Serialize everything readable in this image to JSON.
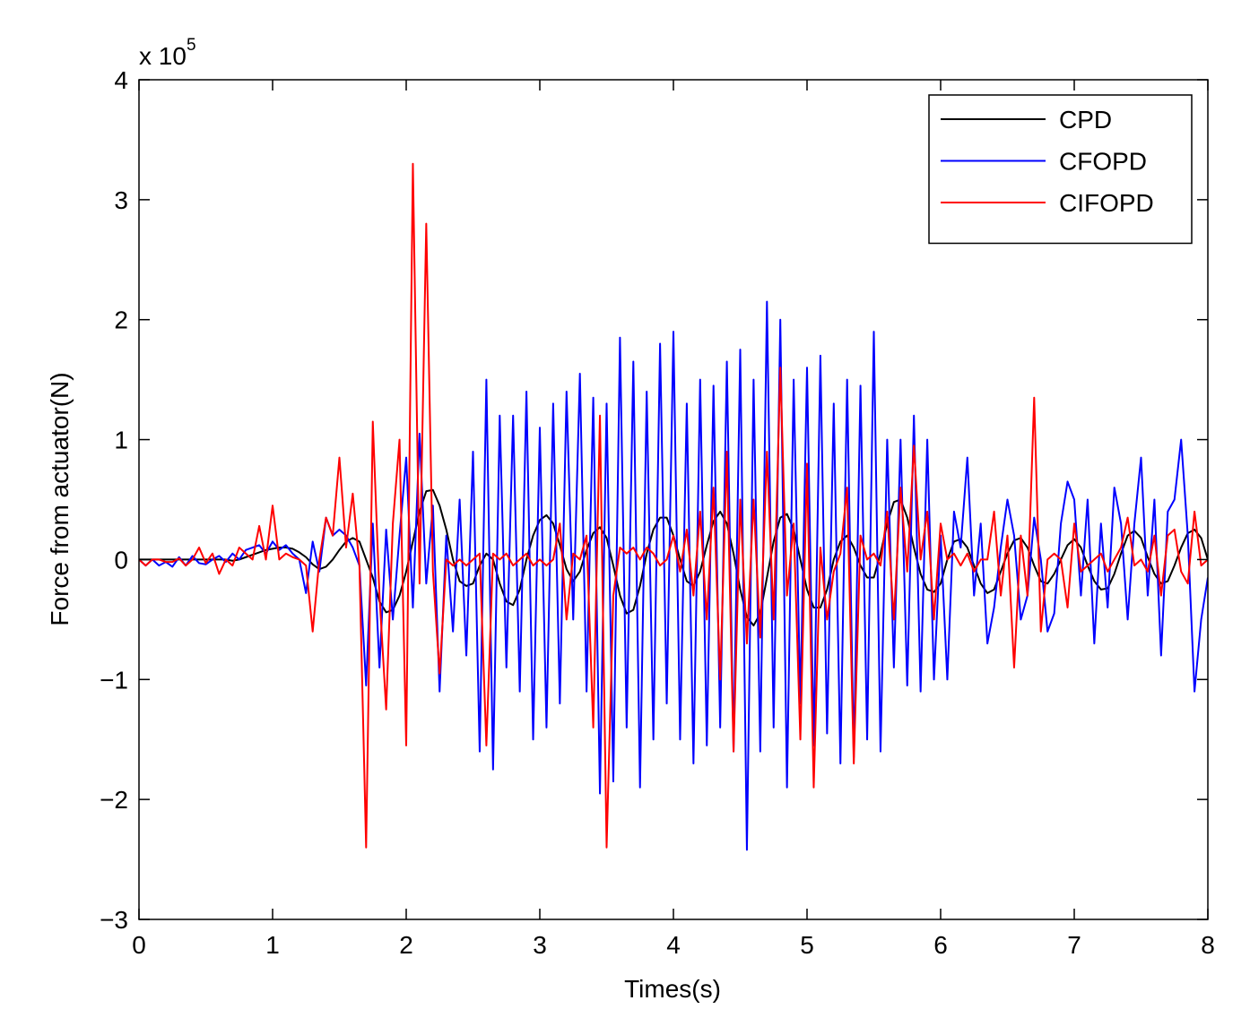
{
  "chart_data": {
    "type": "line",
    "xlabel": "Times(s)",
    "ylabel": "Force from actuator(N)",
    "y_multiplier": {
      "base": "x 10",
      "exponent": "5"
    },
    "xlim": [
      0,
      8
    ],
    "xticks": [
      0,
      1,
      2,
      3,
      4,
      5,
      6,
      7,
      8
    ],
    "ylim": [
      -3,
      4
    ],
    "yticks": [
      {
        "value": -3,
        "label": "−3"
      },
      {
        "value": -2,
        "label": "−2"
      },
      {
        "value": -1,
        "label": "−1"
      },
      0,
      1,
      2,
      3,
      4
    ],
    "grid": false,
    "legend": "upper right",
    "x": [
      0,
      0.05,
      0.1,
      0.15,
      0.2,
      0.25,
      0.3,
      0.35,
      0.4,
      0.45,
      0.5,
      0.55,
      0.6,
      0.65,
      0.7,
      0.75,
      0.8,
      0.85,
      0.9,
      0.95,
      1,
      1.05,
      1.1,
      1.15,
      1.2,
      1.25,
      1.3,
      1.35,
      1.4,
      1.45,
      1.5,
      1.55,
      1.6,
      1.65,
      1.7,
      1.75,
      1.8,
      1.85,
      1.9,
      1.95,
      2,
      2.05,
      2.1,
      2.15,
      2.2,
      2.25,
      2.3,
      2.35,
      2.4,
      2.45,
      2.5,
      2.55,
      2.6,
      2.65,
      2.7,
      2.75,
      2.8,
      2.85,
      2.9,
      2.95,
      3,
      3.05,
      3.1,
      3.15,
      3.2,
      3.25,
      3.3,
      3.35,
      3.4,
      3.45,
      3.5,
      3.55,
      3.6,
      3.65,
      3.7,
      3.75,
      3.8,
      3.85,
      3.9,
      3.95,
      4,
      4.05,
      4.1,
      4.15,
      4.2,
      4.25,
      4.3,
      4.35,
      4.4,
      4.45,
      4.5,
      4.55,
      4.6,
      4.65,
      4.7,
      4.75,
      4.8,
      4.85,
      4.9,
      4.95,
      5,
      5.05,
      5.1,
      5.15,
      5.2,
      5.25,
      5.3,
      5.35,
      5.4,
      5.45,
      5.5,
      5.55,
      5.6,
      5.65,
      5.7,
      5.75,
      5.8,
      5.85,
      5.9,
      5.95,
      6,
      6.05,
      6.1,
      6.15,
      6.2,
      6.25,
      6.3,
      6.35,
      6.4,
      6.45,
      6.5,
      6.55,
      6.6,
      6.65,
      6.7,
      6.75,
      6.8,
      6.85,
      6.9,
      6.95,
      7,
      7.05,
      7.1,
      7.15,
      7.2,
      7.25,
      7.3,
      7.35,
      7.4,
      7.45,
      7.5,
      7.55,
      7.6,
      7.65,
      7.7,
      7.75,
      7.8,
      7.85,
      7.9,
      7.95,
      8
    ],
    "series": [
      {
        "name": "CPD",
        "color": "#000000",
        "values": [
          0,
          0,
          0,
          0,
          0,
          0,
          0,
          0,
          0,
          0,
          0,
          0,
          0,
          0,
          -0.01,
          0,
          0.02,
          0.04,
          0.06,
          0.08,
          0.09,
          0.1,
          0.1,
          0.09,
          0.06,
          0.02,
          -0.04,
          -0.08,
          -0.06,
          0,
          0.08,
          0.15,
          0.18,
          0.15,
          0,
          -0.15,
          -0.35,
          -0.44,
          -0.42,
          -0.3,
          -0.1,
          0.15,
          0.4,
          0.57,
          0.58,
          0.45,
          0.25,
          0,
          -0.18,
          -0.22,
          -0.2,
          -0.05,
          0.05,
          0,
          -0.2,
          -0.35,
          -0.38,
          -0.25,
          0,
          0.2,
          0.33,
          0.37,
          0.3,
          0.12,
          -0.08,
          -0.18,
          -0.1,
          0.08,
          0.22,
          0.27,
          0.18,
          -0.05,
          -0.3,
          -0.45,
          -0.42,
          -0.22,
          0.05,
          0.25,
          0.35,
          0.35,
          0.2,
          0,
          -0.18,
          -0.22,
          -0.1,
          0.12,
          0.32,
          0.4,
          0.3,
          0.05,
          -0.25,
          -0.48,
          -0.55,
          -0.45,
          -0.15,
          0.15,
          0.35,
          0.38,
          0.25,
          0,
          -0.25,
          -0.4,
          -0.4,
          -0.25,
          0,
          0.15,
          0.2,
          0.1,
          -0.05,
          -0.15,
          -0.15,
          0.05,
          0.3,
          0.48,
          0.5,
          0.35,
          0.1,
          -0.12,
          -0.25,
          -0.27,
          -0.2,
          0,
          0.15,
          0.17,
          0.1,
          -0.05,
          -0.2,
          -0.28,
          -0.25,
          -0.1,
          0.05,
          0.16,
          0.18,
          0.1,
          -0.05,
          -0.18,
          -0.2,
          -0.12,
          0,
          0.12,
          0.17,
          0.1,
          -0.05,
          -0.18,
          -0.25,
          -0.24,
          -0.12,
          0.05,
          0.2,
          0.24,
          0.18,
          0.02,
          -0.12,
          -0.2,
          -0.18,
          -0.05,
          0.1,
          0.22,
          0.25,
          0.18,
          0
        ]
      },
      {
        "name": "CFOPD",
        "color": "#0000ff",
        "values": [
          0,
          -0.05,
          0,
          -0.05,
          -0.02,
          -0.06,
          0.02,
          -0.05,
          0.03,
          -0.03,
          -0.04,
          0,
          0.03,
          -0.02,
          0.05,
          0,
          0.08,
          0.1,
          0.12,
          0.05,
          0.15,
          0.08,
          0.12,
          0.05,
          0,
          -0.28,
          0.15,
          -0.1,
          0.35,
          0.2,
          0.25,
          0.2,
          0.1,
          -0.05,
          -1.05,
          0.3,
          -0.9,
          0.25,
          -0.5,
          0.2,
          0.85,
          -0.4,
          1.05,
          -0.2,
          0.45,
          -1.1,
          0.2,
          -0.6,
          0.5,
          -0.8,
          0.9,
          -1.6,
          1.5,
          -1.75,
          1.2,
          -0.9,
          1.2,
          -1.1,
          1.4,
          -1.5,
          1.1,
          -1.4,
          1.3,
          -1.2,
          1.4,
          -0.5,
          1.55,
          -1.1,
          1.35,
          -1.95,
          1.3,
          -1.85,
          1.85,
          -1.4,
          1.65,
          -1.9,
          1.4,
          -1.5,
          1.8,
          -1.2,
          1.9,
          -1.5,
          1.3,
          -1.7,
          1.5,
          -1.55,
          1.45,
          -1.4,
          1.65,
          -1.6,
          1.75,
          -2.42,
          1.5,
          -1.6,
          2.15,
          -1.4,
          2,
          -1.9,
          1.5,
          -1.2,
          1.6,
          -1.55,
          1.7,
          -1.45,
          1.3,
          -1.7,
          1.5,
          -1.65,
          1.45,
          -1.5,
          1.9,
          -1.6,
          1,
          -0.9,
          1,
          -1.05,
          1.2,
          -1.1,
          1,
          -1,
          0.2,
          -1,
          0.4,
          0.1,
          0.85,
          -0.3,
          0.3,
          -0.7,
          -0.4,
          0.1,
          0.5,
          0.2,
          -0.5,
          -0.3,
          0.35,
          0,
          -0.6,
          -0.45,
          0.3,
          0.65,
          0.5,
          -0.3,
          0.5,
          -0.7,
          0.3,
          -0.4,
          0.6,
          0.3,
          -0.5,
          0.3,
          0.85,
          -0.3,
          0.5,
          -0.8,
          0.4,
          0.5,
          1,
          0.2,
          -1.1,
          -0.5,
          -0.15
        ]
      },
      {
        "name": "CIFOPD",
        "color": "#ff0000",
        "values": [
          0,
          -0.05,
          0,
          0,
          -0.02,
          -0.02,
          0.01,
          -0.05,
          0,
          0.1,
          -0.03,
          0.05,
          -0.12,
          0,
          -0.05,
          0.1,
          0.05,
          0,
          0.28,
          0,
          0.45,
          0,
          0.05,
          0.02,
          0,
          -0.05,
          -0.6,
          0,
          0.35,
          0.2,
          0.85,
          0.1,
          0.55,
          -0.05,
          -2.4,
          1.15,
          -0.3,
          -1.25,
          0.3,
          1,
          -1.55,
          3.3,
          -0.2,
          2.8,
          -0.1,
          -0.95,
          0,
          -0.05,
          0,
          -0.05,
          0,
          0.05,
          -1.55,
          0.05,
          0,
          0.05,
          -0.05,
          0,
          0.05,
          -0.05,
          0,
          -0.05,
          0,
          0.3,
          -0.5,
          0.05,
          0,
          0.2,
          -1.4,
          1.2,
          -2.4,
          -0.3,
          0.1,
          0.05,
          0.1,
          0,
          0.1,
          0.05,
          -0.05,
          0,
          0.2,
          -0.1,
          0.25,
          -0.3,
          0.4,
          -0.5,
          0.6,
          -1,
          0.9,
          -1.6,
          0.5,
          -0.7,
          0.5,
          -0.65,
          0.9,
          -0.5,
          1.6,
          -0.3,
          0.3,
          -1.5,
          0.8,
          -1.9,
          0.1,
          -0.5,
          -0.1,
          0.05,
          0.6,
          -1.7,
          0.2,
          0,
          0.05,
          -0.05,
          0.4,
          -0.5,
          0.6,
          -0.1,
          0.95,
          0,
          0.4,
          -0.5,
          0.3,
          0,
          0.05,
          -0.05,
          0.05,
          -0.1,
          0,
          0,
          0.4,
          -0.3,
          0.2,
          -0.9,
          0.2,
          -0.3,
          1.35,
          -0.6,
          0,
          0.05,
          0,
          -0.4,
          0.3,
          -0.1,
          -0.05,
          0,
          0.05,
          -0.1,
          0,
          0.1,
          0.35,
          -0.05,
          0,
          -0.1,
          0.2,
          -0.3,
          0.2,
          0.25,
          -0.1,
          -0.2,
          0.4,
          -0.05,
          0
        ]
      }
    ]
  }
}
